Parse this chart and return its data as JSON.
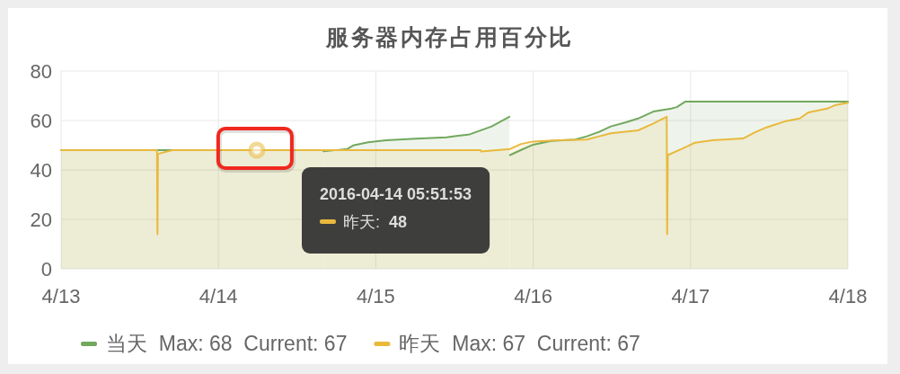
{
  "chart_data": {
    "type": "area",
    "title": "服务器内存占用百分比",
    "xlim": [
      "2016-04-13",
      "2016-04-18"
    ],
    "xticks": [
      {
        "value": "2016-04-13",
        "label": "4/13"
      },
      {
        "value": "2016-04-14",
        "label": "4/14"
      },
      {
        "value": "2016-04-15",
        "label": "4/15"
      },
      {
        "value": "2016-04-16",
        "label": "4/16"
      },
      {
        "value": "2016-04-17",
        "label": "4/17"
      },
      {
        "value": "2016-04-18",
        "label": "4/18"
      }
    ],
    "ylim": [
      0,
      80
    ],
    "yticks": [
      0,
      20,
      40,
      60,
      80
    ],
    "grid": true,
    "legend": "bottom",
    "series": [
      {
        "name": "当天  Max: 68  Current: 67",
        "color": "#72a85e",
        "x": [
          "2016-04-13T00:00",
          "2016-04-14T15:58",
          "2016-04-14T16:00",
          "2016-04-14T16:02",
          "2016-04-14T19:40",
          "2016-04-14T20:32",
          "2016-04-14T22:50",
          "2016-04-15T01:35",
          "2016-04-15T06:05",
          "2016-04-15T10:45",
          "2016-04-15T14:20",
          "2016-04-15T17:40",
          "2016-04-15T20:22",
          "2016-04-15T20:24",
          "2016-04-15T20:28",
          "2016-04-15T22:10",
          "2016-04-16T00:00",
          "2016-04-16T02:45",
          "2016-04-16T06:25",
          "2016-04-16T08:10",
          "2016-04-16T10:05",
          "2016-04-16T11:50",
          "2016-04-16T14:10",
          "2016-04-16T16:00",
          "2016-04-16T18:20",
          "2016-04-16T21:05",
          "2016-04-16T21:55",
          "2016-04-16T23:10",
          "2016-04-18T00:00"
        ],
        "values": [
          48,
          48,
          null,
          47.5,
          48.5,
          49.9,
          51.2,
          52,
          52.6,
          53.2,
          54.4,
          57.6,
          61.5,
          null,
          46,
          48.1,
          50.2,
          51.7,
          52.3,
          53.6,
          55.4,
          57.6,
          59.3,
          60.8,
          63.6,
          64.8,
          65.4,
          67.6,
          67.6
        ]
      },
      {
        "name": "昨天  Max: 67  Current: 67",
        "color": "#e9b93c",
        "x": [
          "2016-04-13T00:00",
          "2016-04-13T14:38",
          "2016-04-13T14:42",
          "2016-04-13T14:46",
          "2016-04-13T17:00",
          "2016-04-15T15:58",
          "2016-04-15T16:00",
          "2016-04-15T16:02",
          "2016-04-15T20:30",
          "2016-04-15T22:10",
          "2016-04-16T00:00",
          "2016-04-16T03:40",
          "2016-04-16T08:10",
          "2016-04-16T10:05",
          "2016-04-16T11:50",
          "2016-04-16T16:00",
          "2016-04-16T18:20",
          "2016-04-16T20:22",
          "2016-04-16T20:26",
          "2016-04-16T20:32",
          "2016-04-16T22:30",
          "2016-04-17T00:40",
          "2016-04-17T03:20",
          "2016-04-17T08:00",
          "2016-04-17T09:50",
          "2016-04-17T11:35",
          "2016-04-17T14:20",
          "2016-04-17T16:40",
          "2016-04-17T18:00",
          "2016-04-17T20:50",
          "2016-04-17T22:10",
          "2016-04-18T00:00"
        ],
        "values": [
          48,
          48,
          14,
          46.5,
          48,
          48,
          null,
          47.5,
          48.5,
          50.5,
          51.5,
          52,
          52.3,
          53.6,
          54.8,
          56,
          58.8,
          61.5,
          14,
          46,
          48.3,
          51,
          52,
          52.7,
          55.2,
          57.2,
          59.6,
          60.8,
          63.3,
          64.8,
          66.3,
          67.2
        ]
      },
      {
        "type": "scatter",
        "marker": "circle",
        "color": "#e9b93c",
        "x": [
          "2016-04-14T05:51"
        ],
        "values": [
          48
        ]
      }
    ],
    "annotations": [
      "2016-04-14 05:51:53\n昨天: 48"
    ]
  }
}
